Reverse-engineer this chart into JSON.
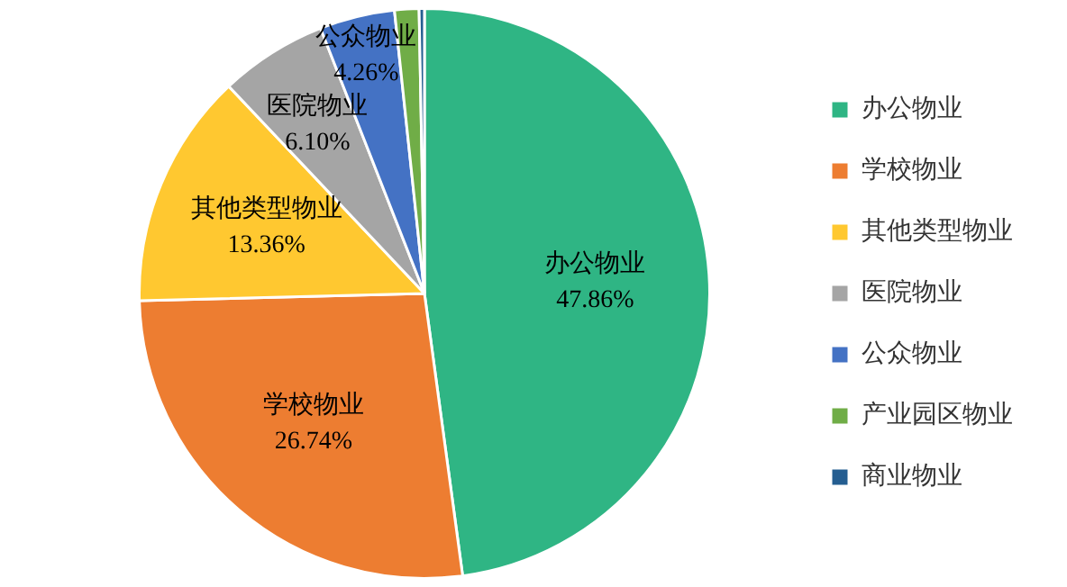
{
  "chart_data": {
    "type": "pie",
    "categories": [
      "办公物业",
      "学校物业",
      "其他类型物业",
      "医院物业",
      "公众物业",
      "产业园区物业",
      "商业物业"
    ],
    "values": [
      47.86,
      26.74,
      13.36,
      6.1,
      4.26,
      1.38,
      0.3
    ],
    "colors": [
      "#2fb584",
      "#ed7d31",
      "#ffc830",
      "#a5a5a5",
      "#4472c4",
      "#70ad47",
      "#255e91"
    ],
    "value_labels": [
      "47.86%",
      "26.74%",
      "13.36%",
      "6.10%",
      "4.26%",
      null,
      null
    ],
    "legend": "right"
  }
}
